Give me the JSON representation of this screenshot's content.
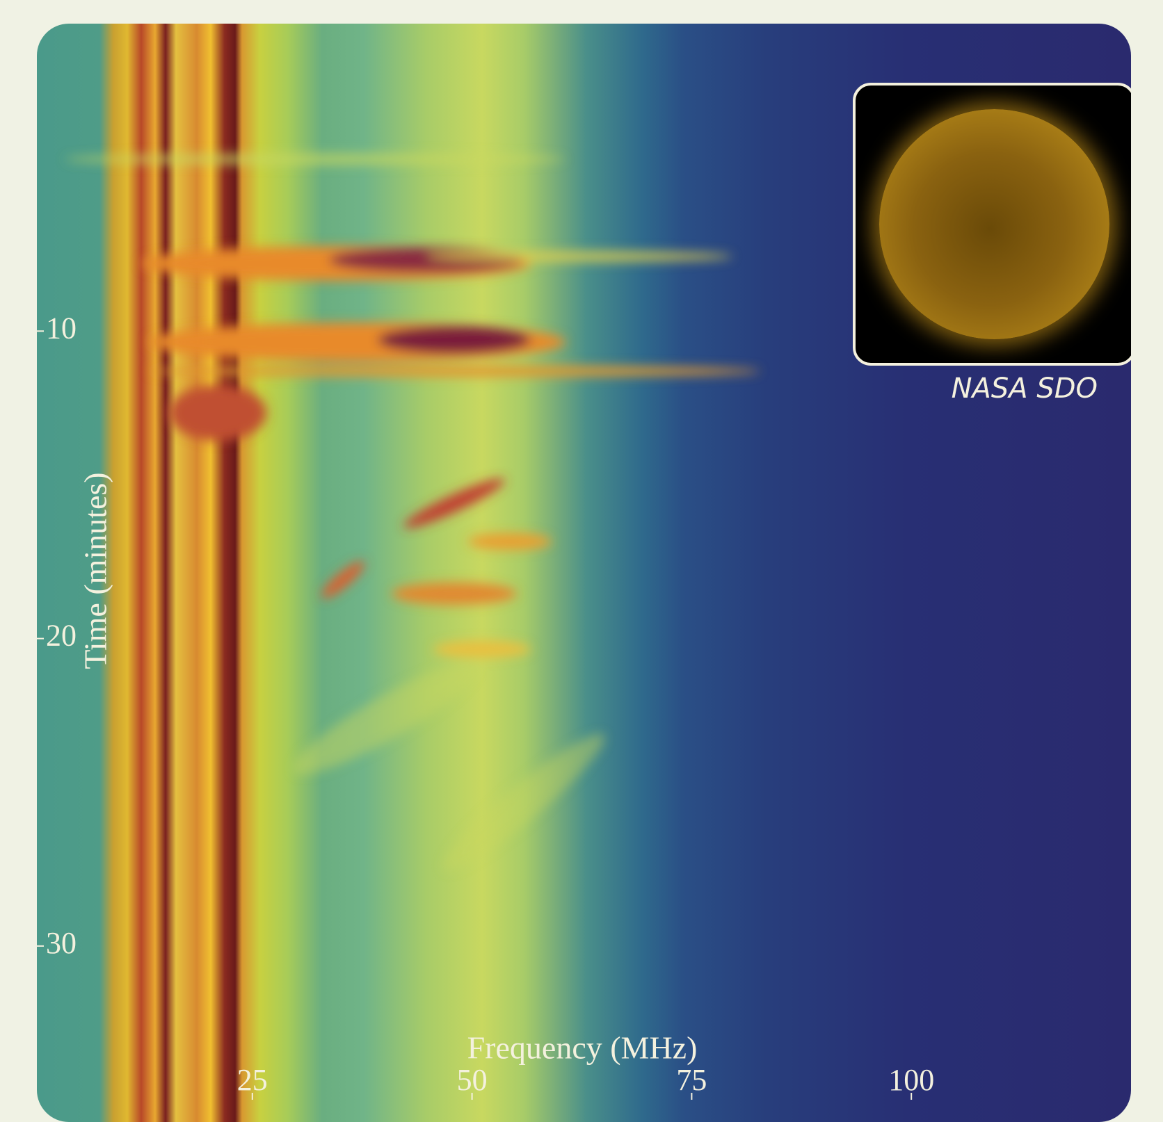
{
  "chart_data": {
    "type": "spectrogram",
    "xlabel": "Frequency (MHz)",
    "ylabel": "Time (minutes)",
    "xlim": [
      0,
      125
    ],
    "xticks": [
      25,
      50,
      75,
      100
    ],
    "ylim": [
      0,
      35
    ],
    "yticks": [
      10,
      20,
      30
    ],
    "caption": "NASA SDO"
  }
}
